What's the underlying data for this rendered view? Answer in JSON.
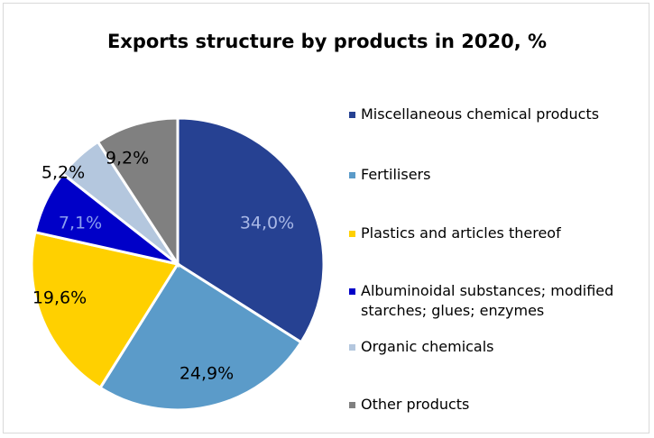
{
  "chart_data": {
    "type": "pie",
    "title": "Exports structure by products in 2020, %",
    "slices": [
      {
        "label": "Miscellaneous chemical products",
        "value": 34.0,
        "value_label": "34,0%",
        "color": "#264192",
        "label_color": "#a9b8e6"
      },
      {
        "label": "Fertilisers",
        "value": 24.9,
        "value_label": "24,9%",
        "color": "#5b9bc9",
        "label_color": "#000000"
      },
      {
        "label": "Plastics and articles thereof",
        "value": 19.6,
        "value_label": "19,6%",
        "color": "#ffd000",
        "label_color": "#000000"
      },
      {
        "label": "Albuminoidal substances; modified starches; glues; enzymes",
        "value": 7.1,
        "value_label": "7,1%",
        "color": "#0000c8",
        "label_color": "#8a9ef0"
      },
      {
        "label": "Organic chemicals",
        "value": 5.2,
        "value_label": "5,2%",
        "color": "#b4c7de",
        "label_color": "#000000"
      },
      {
        "label": "Other products",
        "value": 9.2,
        "value_label": "9,2%",
        "color": "#808080",
        "label_color": "#000000"
      }
    ],
    "legend_position": "right"
  }
}
